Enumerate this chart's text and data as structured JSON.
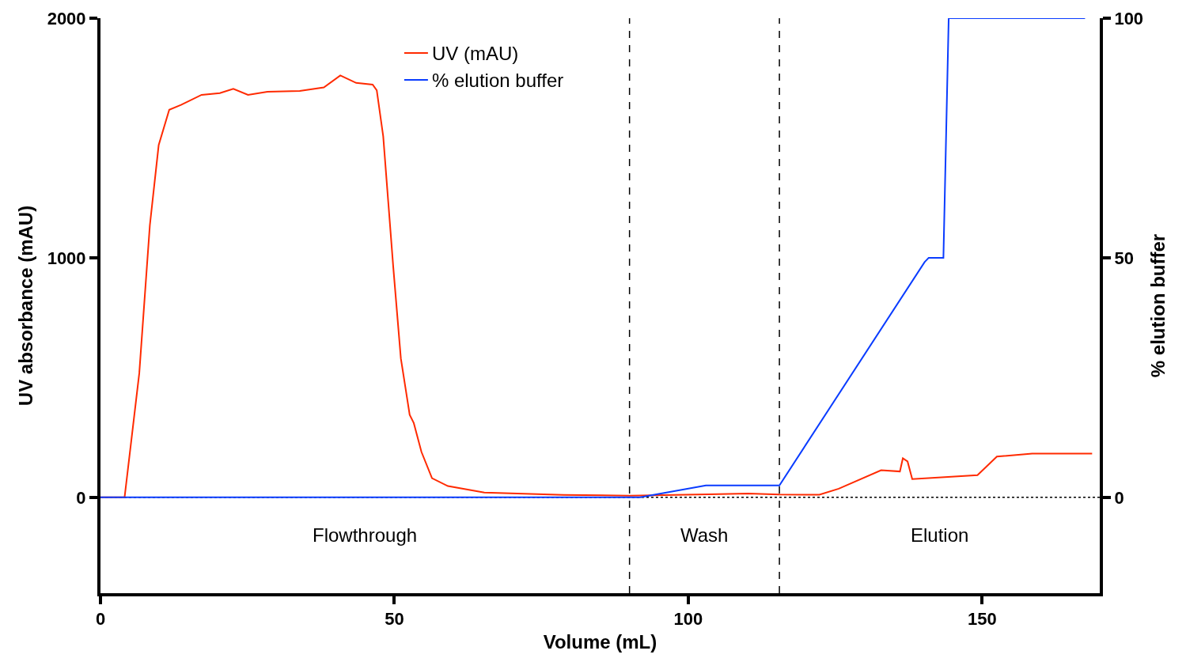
{
  "chart_data": {
    "type": "line",
    "xlabel": "Volume (mL)",
    "ylabel": "UV absorbance (mAU)",
    "y2label": "% elution buffer",
    "xlim": [
      0,
      170
    ],
    "xticks": [
      0,
      50,
      100,
      150
    ],
    "ylim": [
      -400,
      2000
    ],
    "yticks": [
      0,
      1000,
      2000
    ],
    "y2lim": [
      -20,
      100
    ],
    "y2ticks": [
      0,
      50,
      100
    ],
    "series": [
      {
        "name": "UV (mAU)",
        "color": "#ff2a00",
        "x": [
          0,
          4.1,
          6.6,
          8.4,
          9.9,
          11.7,
          13.7,
          17.2,
          20.3,
          22.6,
          25.1,
          28.4,
          33.9,
          38,
          40.8,
          43.5,
          46.3,
          47.0,
          48.1,
          49.8,
          51.1,
          52.6,
          53.3,
          54.6,
          56.4,
          59.1,
          65.3,
          78.8,
          90,
          103.4,
          110.2,
          115.5,
          122.3,
          125.6,
          132.8,
          136.0,
          136.5,
          137.3,
          138.1,
          149.2,
          152.5,
          158.5,
          168.7
        ],
        "values": [
          0,
          0,
          518,
          1136,
          1470,
          1618,
          1638,
          1680,
          1687,
          1705,
          1680,
          1693,
          1696,
          1711,
          1761,
          1730,
          1723,
          1699,
          1507,
          964,
          580,
          345,
          310,
          190,
          80,
          47,
          20,
          10,
          7,
          13,
          16,
          12,
          11,
          36,
          113,
          108,
          163,
          150,
          76,
          93,
          170,
          183,
          183
        ]
      },
      {
        "name": "% elution buffer",
        "color": "#0a3cff",
        "axis": "y2",
        "x": [
          0,
          91.8,
          103,
          115.5,
          140.2,
          140.9,
          143.4,
          144.3,
          167.5
        ],
        "values": [
          0,
          0,
          2.5,
          2.5,
          49.1,
          50,
          50,
          100,
          100
        ]
      }
    ],
    "ref_lines": [
      {
        "axis": "x",
        "value": 90,
        "color": "#000000",
        "line_style": "dashed"
      },
      {
        "axis": "x",
        "value": 115.5,
        "color": "#000000",
        "line_style": "dashed"
      },
      {
        "axis": "y",
        "value": 0,
        "color": "#000000",
        "line_style": "dotted"
      }
    ],
    "annotations": [
      "Flowthrough",
      "Wash",
      "Elution"
    ],
    "legend": "top",
    "grid": false
  }
}
